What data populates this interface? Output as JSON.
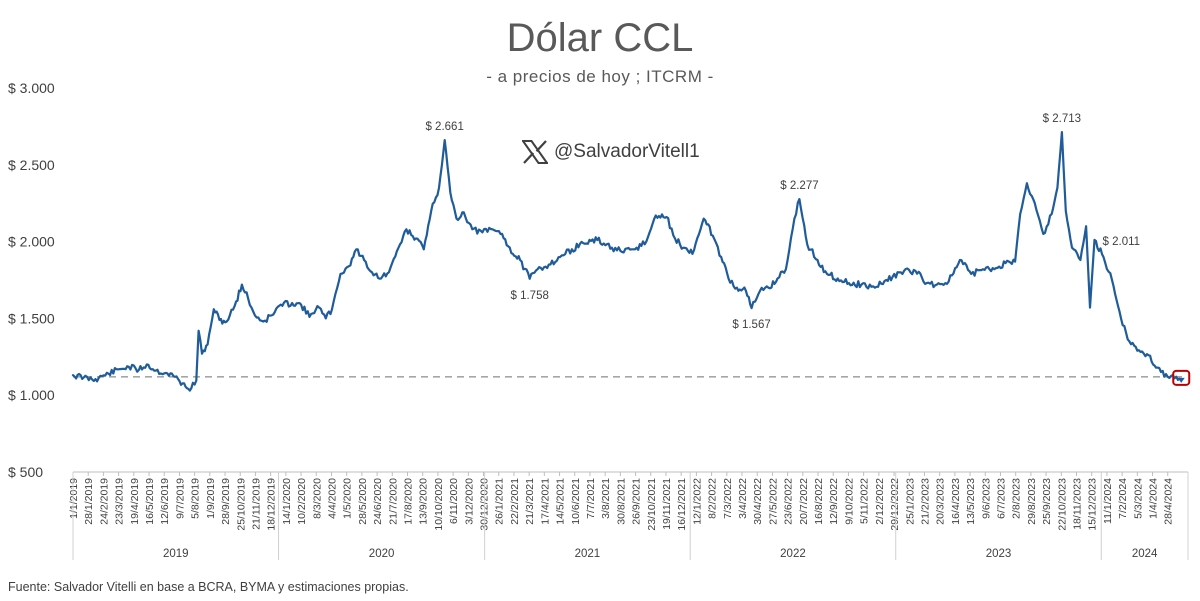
{
  "header": {
    "title": "Dólar CCL",
    "subtitle": "- a precios de hoy ; ITCRM -",
    "handle": "@SalvadorVitell1"
  },
  "footer": {
    "source": "Fuente: Salvador Vitelli en base a BCRA, BYMA y estimaciones propias."
  },
  "colors": {
    "line": "#1F5C99",
    "reference": "#A6A6A6",
    "marker": "#C00000",
    "text": "#595959"
  },
  "chart_data": {
    "type": "line",
    "title": "Dólar CCL",
    "subtitle": "- a precios de hoy ; ITCRM -",
    "ylim": [
      500,
      3000
    ],
    "y_ticks": [
      500,
      1000,
      1500,
      2000,
      2500,
      3000
    ],
    "y_tick_labels": [
      "$ 500",
      "$ 1.000",
      "$ 1.500",
      "$ 2.000",
      "$ 2.500",
      "$ 3.000"
    ],
    "x_range": [
      "2019-01-01",
      "2024-05-28"
    ],
    "x_tick_labels": [
      "1/1/2019",
      "28/1/2019",
      "24/2/2019",
      "23/3/2019",
      "19/4/2019",
      "16/5/2019",
      "12/6/2019",
      "9/7/2019",
      "5/8/2019",
      "1/9/2019",
      "28/9/2019",
      "25/10/2019",
      "21/11/2019",
      "18/12/2019",
      "14/1/2020",
      "10/2/2020",
      "8/3/2020",
      "4/4/2020",
      "1/5/2020",
      "28/5/2020",
      "24/6/2020",
      "21/7/2020",
      "17/8/2020",
      "13/9/2020",
      "10/10/2020",
      "6/11/2020",
      "3/12/2020",
      "30/12/2020",
      "26/1/2021",
      "22/2/2021",
      "21/3/2021",
      "17/4/2021",
      "14/5/2021",
      "10/6/2021",
      "7/7/2021",
      "3/8/2021",
      "30/8/2021",
      "26/9/2021",
      "23/10/2021",
      "19/11/2021",
      "16/12/2021",
      "12/1/2022",
      "8/2/2022",
      "7/3/2022",
      "3/4/2022",
      "30/4/2022",
      "27/5/2022",
      "23/6/2022",
      "20/7/2022",
      "16/8/2022",
      "12/9/2022",
      "9/10/2022",
      "5/11/2022",
      "2/12/2022",
      "29/12/2022",
      "25/1/2023",
      "21/2/2023",
      "20/3/2023",
      "16/4/2023",
      "13/5/2023",
      "9/6/2023",
      "6/7/2023",
      "2/8/2023",
      "29/8/2023",
      "25/9/2023",
      "22/10/2023",
      "18/11/2023",
      "15/12/2023",
      "11/1/2024",
      "7/2/2024",
      "5/3/2024",
      "1/4/2024",
      "28/4/2024"
    ],
    "year_labels": [
      "2019",
      "2020",
      "2021",
      "2022",
      "2023",
      "2024"
    ],
    "reference_line": {
      "value": 1120,
      "style": "dashed"
    },
    "annotations": [
      {
        "x": "2020-10-22",
        "y": 2661,
        "label": "$ 2.661"
      },
      {
        "x": "2021-03-22",
        "y": 1758,
        "label": "$ 1.758"
      },
      {
        "x": "2022-04-20",
        "y": 1567,
        "label": "$ 1.567"
      },
      {
        "x": "2022-07-14",
        "y": 2277,
        "label": "$ 2.277"
      },
      {
        "x": "2023-10-23",
        "y": 2713,
        "label": "$ 2.713"
      },
      {
        "x": "2023-12-20",
        "y": 2011,
        "label": "$ 2.011"
      }
    ],
    "series": [
      {
        "values": [
          [
            "2019-01-01",
            1130
          ],
          [
            "2019-01-20",
            1115
          ],
          [
            "2019-02-10",
            1105
          ],
          [
            "2019-03-05",
            1140
          ],
          [
            "2019-03-25",
            1170
          ],
          [
            "2019-04-10",
            1185
          ],
          [
            "2019-04-28",
            1165
          ],
          [
            "2019-05-12",
            1200
          ],
          [
            "2019-05-28",
            1160
          ],
          [
            "2019-06-15",
            1145
          ],
          [
            "2019-07-01",
            1120
          ],
          [
            "2019-07-20",
            1055
          ],
          [
            "2019-07-30",
            1045
          ],
          [
            "2019-08-08",
            1095
          ],
          [
            "2019-08-12",
            1420
          ],
          [
            "2019-08-18",
            1270
          ],
          [
            "2019-08-28",
            1330
          ],
          [
            "2019-09-08",
            1560
          ],
          [
            "2019-09-18",
            1490
          ],
          [
            "2019-10-01",
            1480
          ],
          [
            "2019-10-15",
            1580
          ],
          [
            "2019-10-28",
            1720
          ],
          [
            "2019-11-08",
            1630
          ],
          [
            "2019-11-20",
            1520
          ],
          [
            "2019-12-05",
            1480
          ],
          [
            "2019-12-20",
            1520
          ],
          [
            "2020-01-05",
            1590
          ],
          [
            "2020-01-25",
            1600
          ],
          [
            "2020-02-10",
            1590
          ],
          [
            "2020-02-25",
            1510
          ],
          [
            "2020-03-10",
            1580
          ],
          [
            "2020-03-25",
            1500
          ],
          [
            "2020-04-05",
            1560
          ],
          [
            "2020-04-20",
            1790
          ],
          [
            "2020-05-05",
            1840
          ],
          [
            "2020-05-18",
            1950
          ],
          [
            "2020-06-01",
            1880
          ],
          [
            "2020-06-15",
            1800
          ],
          [
            "2020-07-01",
            1760
          ],
          [
            "2020-07-15",
            1800
          ],
          [
            "2020-08-01",
            1960
          ],
          [
            "2020-08-15",
            2080
          ],
          [
            "2020-09-01",
            2020
          ],
          [
            "2020-09-15",
            1950
          ],
          [
            "2020-09-28",
            2200
          ],
          [
            "2020-10-12",
            2350
          ],
          [
            "2020-10-22",
            2661
          ],
          [
            "2020-11-01",
            2320
          ],
          [
            "2020-11-12",
            2150
          ],
          [
            "2020-11-25",
            2190
          ],
          [
            "2020-12-10",
            2080
          ],
          [
            "2020-12-28",
            2060
          ],
          [
            "2021-01-15",
            2080
          ],
          [
            "2021-02-01",
            2050
          ],
          [
            "2021-02-20",
            1920
          ],
          [
            "2021-03-05",
            1880
          ],
          [
            "2021-03-22",
            1758
          ],
          [
            "2021-04-05",
            1820
          ],
          [
            "2021-04-25",
            1850
          ],
          [
            "2021-05-15",
            1900
          ],
          [
            "2021-06-05",
            1950
          ],
          [
            "2021-06-25",
            1990
          ],
          [
            "2021-07-20",
            2010
          ],
          [
            "2021-08-15",
            1960
          ],
          [
            "2021-09-05",
            1930
          ],
          [
            "2021-09-25",
            1950
          ],
          [
            "2021-10-15",
            2000
          ],
          [
            "2021-11-01",
            2170
          ],
          [
            "2021-11-20",
            2160
          ],
          [
            "2021-12-05",
            2020
          ],
          [
            "2021-12-20",
            1960
          ],
          [
            "2022-01-05",
            1920
          ],
          [
            "2022-01-25",
            2150
          ],
          [
            "2022-02-10",
            2040
          ],
          [
            "2022-02-25",
            1900
          ],
          [
            "2022-03-10",
            1760
          ],
          [
            "2022-03-25",
            1700
          ],
          [
            "2022-04-10",
            1680
          ],
          [
            "2022-04-20",
            1567
          ],
          [
            "2022-05-05",
            1680
          ],
          [
            "2022-05-20",
            1700
          ],
          [
            "2022-06-05",
            1760
          ],
          [
            "2022-06-20",
            1820
          ],
          [
            "2022-07-05",
            2150
          ],
          [
            "2022-07-14",
            2277
          ],
          [
            "2022-07-28",
            1980
          ],
          [
            "2022-08-15",
            1880
          ],
          [
            "2022-09-01",
            1790
          ],
          [
            "2022-09-20",
            1760
          ],
          [
            "2022-10-10",
            1730
          ],
          [
            "2022-11-01",
            1720
          ],
          [
            "2022-11-25",
            1700
          ],
          [
            "2022-12-15",
            1750
          ],
          [
            "2023-01-10",
            1800
          ],
          [
            "2023-02-05",
            1810
          ],
          [
            "2023-02-25",
            1730
          ],
          [
            "2023-03-15",
            1720
          ],
          [
            "2023-04-05",
            1740
          ],
          [
            "2023-04-25",
            1880
          ],
          [
            "2023-05-15",
            1790
          ],
          [
            "2023-06-05",
            1820
          ],
          [
            "2023-06-25",
            1820
          ],
          [
            "2023-07-15",
            1860
          ],
          [
            "2023-08-01",
            1870
          ],
          [
            "2023-08-10",
            2180
          ],
          [
            "2023-08-22",
            2380
          ],
          [
            "2023-09-05",
            2250
          ],
          [
            "2023-09-20",
            2050
          ],
          [
            "2023-10-05",
            2180
          ],
          [
            "2023-10-15",
            2350
          ],
          [
            "2023-10-23",
            2713
          ],
          [
            "2023-10-30",
            2200
          ],
          [
            "2023-11-10",
            1960
          ],
          [
            "2023-11-25",
            1880
          ],
          [
            "2023-12-05",
            2100
          ],
          [
            "2023-12-12",
            1570
          ],
          [
            "2023-12-20",
            2011
          ],
          [
            "2024-01-05",
            1900
          ],
          [
            "2024-01-20",
            1750
          ],
          [
            "2024-02-05",
            1500
          ],
          [
            "2024-02-20",
            1350
          ],
          [
            "2024-03-05",
            1290
          ],
          [
            "2024-03-25",
            1260
          ],
          [
            "2024-04-10",
            1180
          ],
          [
            "2024-04-28",
            1120
          ],
          [
            "2024-05-10",
            1110
          ],
          [
            "2024-05-22",
            1100
          ]
        ]
      }
    ]
  }
}
